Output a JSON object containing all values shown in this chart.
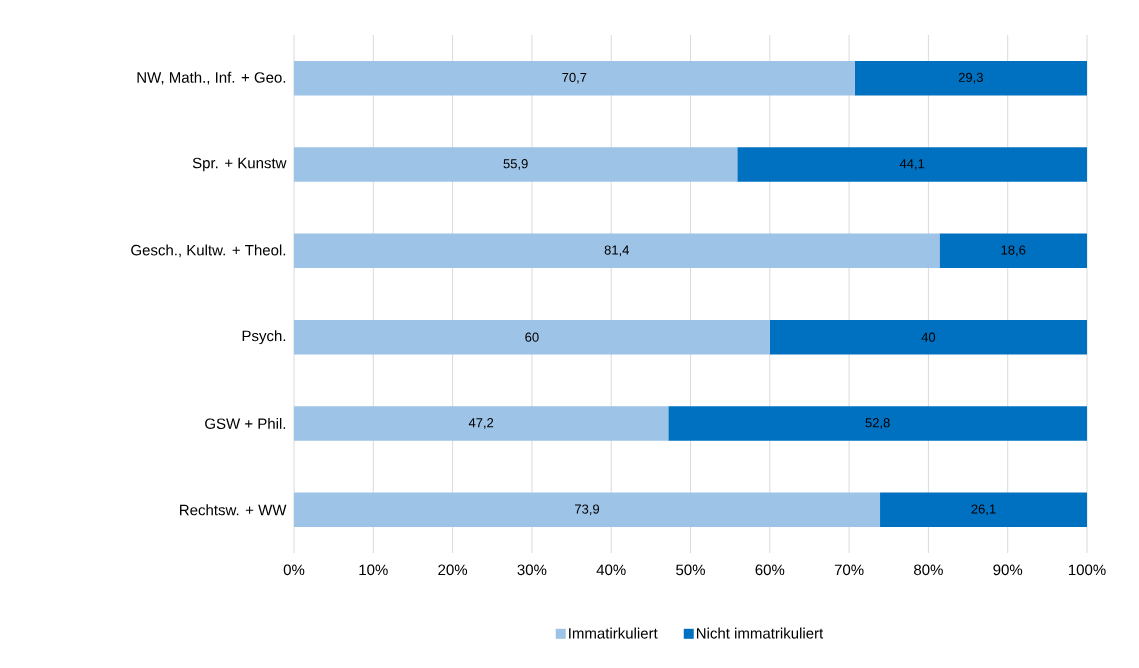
{
  "chart_data": {
    "type": "bar",
    "orientation": "horizontal",
    "stacked": true,
    "categories": [
      "NW, Math., Inf. + Geo.",
      "Spr. + Kunstw",
      "Gesch., Kultw. + Theol.",
      "Psych.",
      "GSW + Phil.",
      "Rechtsw. + WW"
    ],
    "series": [
      {
        "name": "Immatirkuliert",
        "color": "#9dc3e6",
        "values": [
          70.7,
          55.9,
          81.4,
          60,
          47.2,
          73.9
        ],
        "value_labels": [
          "70,7",
          "55,9",
          "81,4",
          "60",
          "47,2",
          "73,9"
        ]
      },
      {
        "name": "Nicht immatrikuliert",
        "color": "#0070c0",
        "values": [
          29.3,
          44.1,
          18.6,
          40,
          52.8,
          26.1
        ],
        "value_labels": [
          "29,3",
          "44,1",
          "18,6",
          "40",
          "52,8",
          "26,1"
        ]
      }
    ],
    "xlim": [
      0,
      100
    ],
    "xticks": [
      {
        "value": 0,
        "label": "0%"
      },
      {
        "value": 10,
        "label": "10%"
      },
      {
        "value": 20,
        "label": "20%"
      },
      {
        "value": 30,
        "label": "30%"
      },
      {
        "value": 40,
        "label": "40%"
      },
      {
        "value": 50,
        "label": "50%"
      },
      {
        "value": 60,
        "label": "60%"
      },
      {
        "value": 70,
        "label": "70%"
      },
      {
        "value": 80,
        "label": "80%"
      },
      {
        "value": 90,
        "label": "90%"
      },
      {
        "value": 100,
        "label": "100%"
      }
    ],
    "grid": "x",
    "legend": "bottom"
  }
}
